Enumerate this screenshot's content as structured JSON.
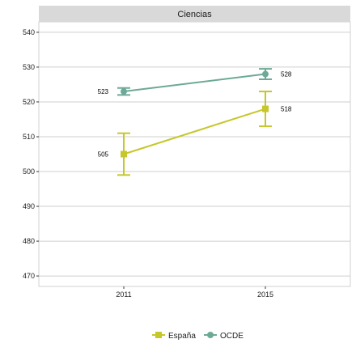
{
  "chart_data": {
    "type": "line",
    "title": "Ciencias",
    "xlabel": "",
    "ylabel": "",
    "categories": [
      "2011",
      "2015"
    ],
    "ylim": [
      467,
      543
    ],
    "yticks": [
      470,
      480,
      490,
      500,
      510,
      520,
      530,
      540
    ],
    "grid": true,
    "legend_position": "bottom",
    "series": [
      {
        "name": "España",
        "color": "#c5c72a",
        "marker": "square",
        "values": [
          505,
          518
        ],
        "error_low": [
          499,
          513
        ],
        "error_high": [
          511,
          523
        ],
        "labels": [
          "505",
          "518"
        ]
      },
      {
        "name": "OCDE",
        "color": "#6da997",
        "marker": "circle",
        "values": [
          523,
          528
        ],
        "error_low": [
          522,
          526.5
        ],
        "error_high": [
          524,
          529.5
        ],
        "labels": [
          "523",
          "528"
        ]
      }
    ]
  }
}
